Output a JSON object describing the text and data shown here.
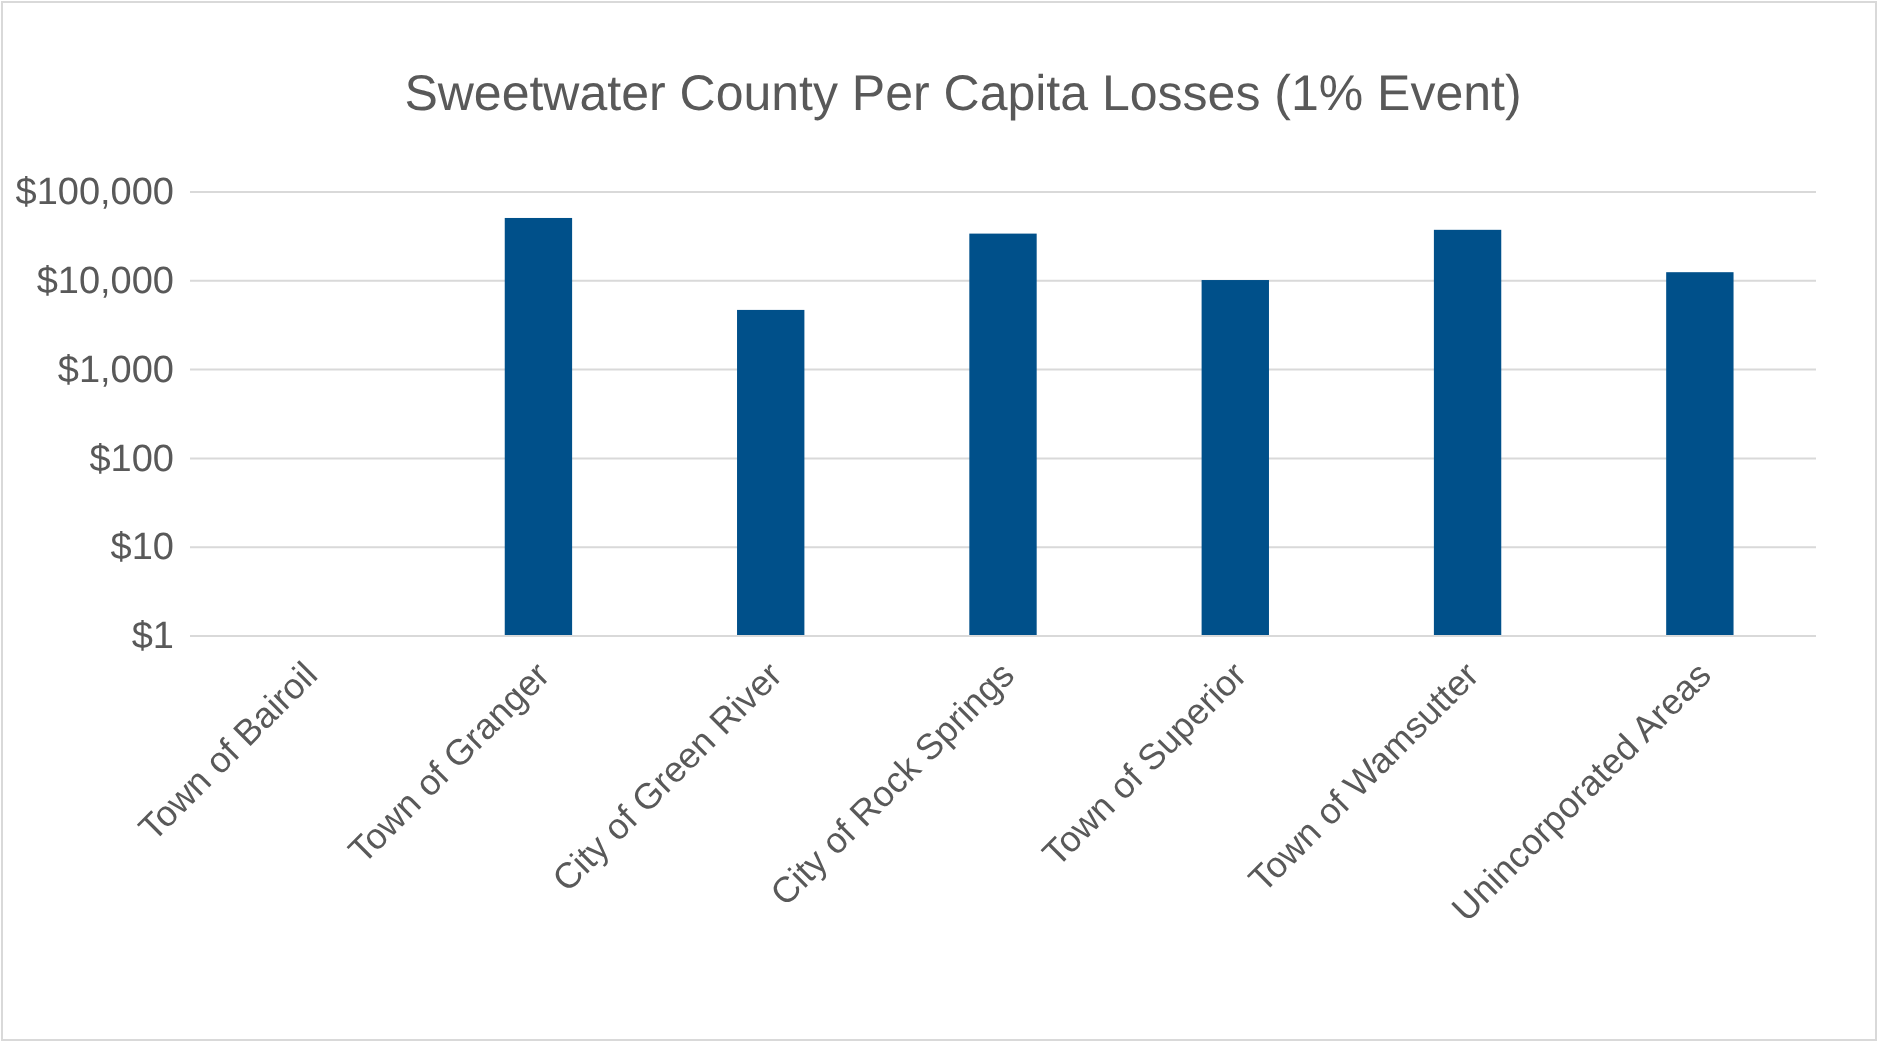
{
  "chart_data": {
    "type": "bar",
    "title": "Sweetwater County Per Capita Losses (1% Event)",
    "categories": [
      "Town of Bairoil",
      "Town of Granger",
      "City of Green River",
      "City of Rock Springs",
      "Town of Superior",
      "Town of Wamsutter",
      "Unincorporated Areas"
    ],
    "values": [
      null,
      51000,
      4700,
      34000,
      10200,
      37500,
      12500
    ],
    "color": "#00508a",
    "log": "y",
    "ylim": [
      1,
      100000
    ],
    "yticks": [
      {
        "value": 1,
        "label": "$1"
      },
      {
        "value": 10,
        "label": "$10"
      },
      {
        "value": 100,
        "label": "$100"
      },
      {
        "value": 1000,
        "label": "$1,000"
      },
      {
        "value": 10000,
        "label": "$10,000"
      },
      {
        "value": 100000,
        "label": "$100,000"
      }
    ],
    "grid": "y"
  }
}
